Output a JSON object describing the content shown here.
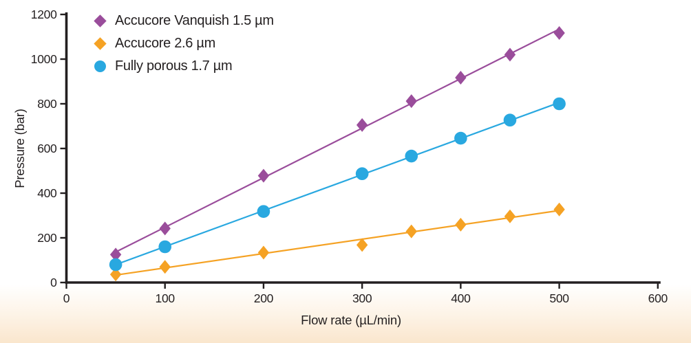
{
  "figure": {
    "background_top": "#ffffff",
    "background_bottom": "#fae6cd",
    "text_color": "#231f20",
    "axis_color": "#231f20"
  },
  "chart_data": {
    "type": "scatter",
    "title": "",
    "xlabel": "Flow rate (µL/min)",
    "ylabel": "Pressure (bar)",
    "xlim": [
      0,
      600
    ],
    "ylim": [
      0,
      1200
    ],
    "x_ticks": [
      0,
      100,
      200,
      300,
      400,
      500,
      600
    ],
    "y_ticks": [
      0,
      200,
      400,
      600,
      800,
      1000,
      1200
    ],
    "grid": false,
    "legend_position": "top-left",
    "trendlines": true,
    "x": [
      50,
      100,
      200,
      300,
      350,
      400,
      450,
      500
    ],
    "series": [
      {
        "name": "Accucore Vanquish 1.5 µm",
        "marker": "diamond",
        "color": "#9a4d9b",
        "values": [
          125,
          242,
          478,
          705,
          812,
          917,
          1020,
          1117
        ]
      },
      {
        "name": "Accucore 2.6 µm",
        "marker": "diamond",
        "color": "#f5a224",
        "values": [
          36,
          70,
          134,
          168,
          229,
          259,
          296,
          327
        ]
      },
      {
        "name": "Fully porous 1.7 µm",
        "marker": "circle",
        "color": "#29a8e0",
        "values": [
          80,
          160,
          318,
          487,
          566,
          646,
          727,
          800
        ]
      }
    ]
  }
}
